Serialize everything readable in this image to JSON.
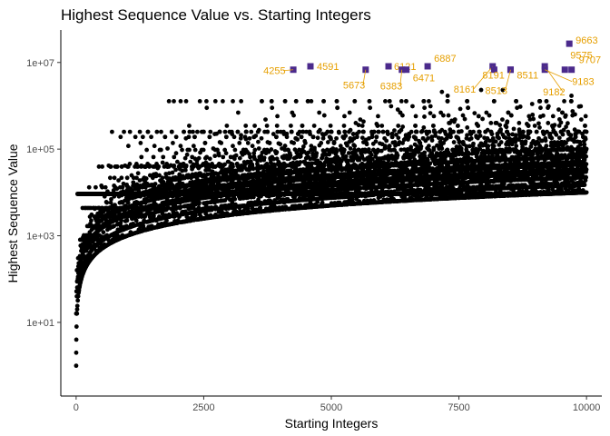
{
  "chart_data": {
    "type": "scatter",
    "title": "Highest Sequence Value vs. Starting Integers",
    "xlabel": "Starting Integers",
    "ylabel": "Highest Sequence Value",
    "xlim": [
      -300,
      10300
    ],
    "ylim_log10": [
      -0.7,
      7.75
    ],
    "x_ticks": [
      0,
      2500,
      5000,
      7500,
      10000
    ],
    "x_tick_labels": [
      "0",
      "2500",
      "5000",
      "7500",
      "10000"
    ],
    "y_ticks": [
      10,
      1000,
      100000,
      10000000
    ],
    "y_tick_labels": [
      "1e+01",
      "1e+03",
      "1e+05",
      "1e+07"
    ],
    "scale_y": "log10",
    "grid": false,
    "point_color": "#000000",
    "highlight_color": "#4B2A8C",
    "label_color": "#E69F00",
    "highlights": [
      {
        "label": "4255",
        "x": 4255,
        "y": 6810136
      },
      {
        "label": "4591",
        "x": 4591,
        "y": 8153620
      },
      {
        "label": "5673",
        "x": 5673,
        "y": 6810136
      },
      {
        "label": "6121",
        "x": 6121,
        "y": 8153620
      },
      {
        "label": "6383",
        "x": 6383,
        "y": 6810136
      },
      {
        "label": "6471",
        "x": 6471,
        "y": 6810136
      },
      {
        "label": "6887",
        "x": 6887,
        "y": 8153620
      },
      {
        "label": "8161",
        "x": 8161,
        "y": 8153620
      },
      {
        "label": "8191",
        "x": 8191,
        "y": 6810136
      },
      {
        "label": "8511",
        "x": 8511,
        "y": 6810136
      },
      {
        "label": "8513",
        "x": 8513,
        "y": 6810136
      },
      {
        "label": "9182",
        "x": 9182,
        "y": 8153620
      },
      {
        "label": "9183",
        "x": 9183,
        "y": 6810136
      },
      {
        "label": "9575",
        "x": 9575,
        "y": 6810136
      },
      {
        "label": "9663",
        "x": 9663,
        "y": 27114424
      },
      {
        "label": "9707",
        "x": 9707,
        "y": 6810136
      }
    ]
  }
}
